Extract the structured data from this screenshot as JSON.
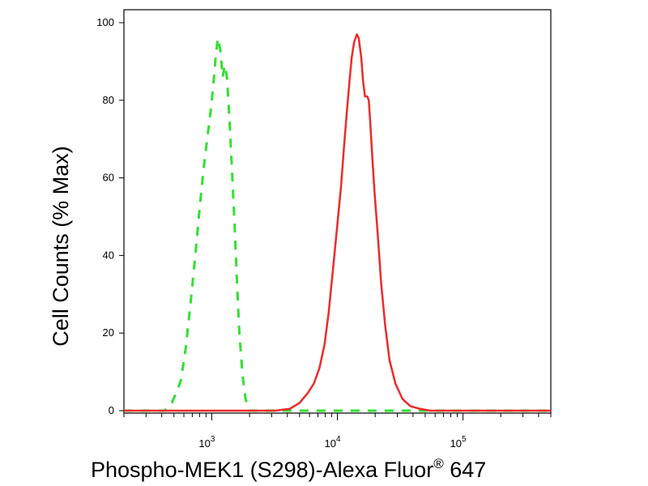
{
  "chart_data": {
    "type": "line",
    "title": "",
    "xlabel": "Phospho-MEK1 (S298)-Alexa Fluor® 647",
    "xlabel_parts": {
      "prefix": "Phospho-MEK1 (S298)-Alexa Fluor",
      "sup": "®",
      "suffix": " 647"
    },
    "ylabel": "Cell Counts (% Max)",
    "xscale": "log",
    "xlim": [
      200,
      500000
    ],
    "ylim": [
      0,
      100
    ],
    "yticks": [
      0,
      20,
      40,
      60,
      80,
      100
    ],
    "ytick_labels": [
      "0",
      "20",
      "40",
      "60",
      "80",
      "100"
    ],
    "xticks": [
      {
        "value": 1000,
        "base": "10",
        "exp": "3"
      },
      {
        "value": 10000,
        "base": "10",
        "exp": "4"
      },
      {
        "value": 100000,
        "base": "10",
        "exp": "5"
      }
    ],
    "grid": false,
    "legend": "none",
    "series": [
      {
        "color": "#32e032",
        "dash": "dashed",
        "points": [
          [
            200,
            0
          ],
          [
            420,
            0
          ],
          [
            480,
            2
          ],
          [
            530,
            5
          ],
          [
            570,
            8
          ],
          [
            620,
            16
          ],
          [
            680,
            28
          ],
          [
            740,
            40
          ],
          [
            800,
            52
          ],
          [
            860,
            62
          ],
          [
            920,
            70
          ],
          [
            970,
            76
          ],
          [
            1030,
            84
          ],
          [
            1080,
            92
          ],
          [
            1120,
            96
          ],
          [
            1170,
            93
          ],
          [
            1220,
            86
          ],
          [
            1270,
            89
          ],
          [
            1320,
            86
          ],
          [
            1380,
            76
          ],
          [
            1450,
            62
          ],
          [
            1520,
            48
          ],
          [
            1590,
            33
          ],
          [
            1660,
            20
          ],
          [
            1760,
            9
          ],
          [
            1860,
            3
          ],
          [
            2000,
            0
          ],
          [
            500000,
            0
          ]
        ]
      },
      {
        "color": "#ee2a2a",
        "dash": "solid",
        "points": [
          [
            200,
            0
          ],
          [
            3200,
            0
          ],
          [
            4200,
            0.5
          ],
          [
            5000,
            2
          ],
          [
            5800,
            4.5
          ],
          [
            6500,
            7
          ],
          [
            7200,
            11
          ],
          [
            7900,
            17
          ],
          [
            8500,
            25
          ],
          [
            9200,
            36
          ],
          [
            10000,
            48
          ],
          [
            10700,
            58
          ],
          [
            11300,
            68
          ],
          [
            11900,
            77
          ],
          [
            12500,
            85
          ],
          [
            13000,
            91
          ],
          [
            13600,
            95
          ],
          [
            14300,
            97
          ],
          [
            14800,
            96
          ],
          [
            15500,
            91
          ],
          [
            16000,
            85
          ],
          [
            16600,
            81
          ],
          [
            17300,
            81
          ],
          [
            17800,
            80
          ],
          [
            18300,
            74
          ],
          [
            19000,
            65
          ],
          [
            19800,
            56
          ],
          [
            21000,
            45
          ],
          [
            22300,
            33
          ],
          [
            24000,
            22
          ],
          [
            26000,
            13
          ],
          [
            29000,
            7
          ],
          [
            33000,
            3
          ],
          [
            38000,
            1.2
          ],
          [
            45000,
            0.5
          ],
          [
            55000,
            0
          ],
          [
            500000,
            0
          ]
        ]
      }
    ]
  }
}
